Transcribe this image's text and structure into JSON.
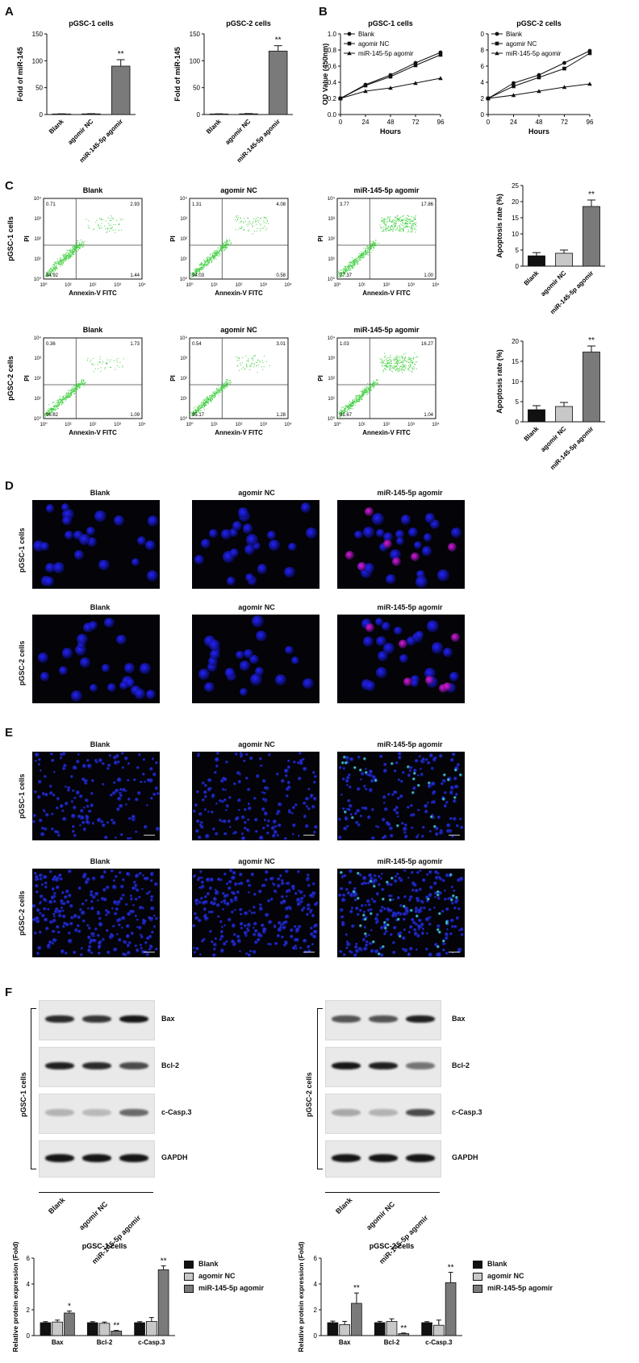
{
  "panels": {
    "A": "A",
    "B": "B",
    "C": "C",
    "D": "D",
    "E": "E",
    "F": "F"
  },
  "groups": [
    "Blank",
    "agomir NC",
    "miR-145-5p agomir"
  ],
  "cells": [
    "pGSC-1 cells",
    "pGSC-2 cells"
  ],
  "flow": {
    "xlabel": "Annexin-V FITC",
    "ylabel": "PI",
    "quadrants": [
      [
        [
          "0.71",
          "2.93",
          "94.92",
          "1.44"
        ],
        [
          "1.31",
          "4.08",
          "94.03",
          "0.58"
        ],
        [
          "3.77",
          "17.86",
          "77.37",
          "1.00"
        ]
      ],
      [
        [
          "0.36",
          "1.73",
          "96.82",
          "1.09"
        ],
        [
          "0.54",
          "3.01",
          "95.17",
          "1.28"
        ],
        [
          "1.03",
          "16.27",
          "81.67",
          "1.04"
        ]
      ]
    ]
  },
  "western": {
    "proteins": [
      "Bax",
      "Bcl-2",
      "c-Casp.3",
      "GAPDH"
    ]
  },
  "chart_data": [
    {
      "id": "A1",
      "type": "bar",
      "title": "pGSC-1 cells",
      "ylabel": "Fold of miR-145",
      "categories": [
        "Blank",
        "agomir NC",
        "miR-145-5p agomir"
      ],
      "values": [
        1,
        1.2,
        90
      ],
      "errors": [
        0.3,
        0.4,
        12
      ],
      "ylim": [
        0,
        150
      ],
      "yticks": [
        0,
        50,
        100,
        150
      ],
      "sig": [
        "",
        "",
        "**"
      ]
    },
    {
      "id": "A2",
      "type": "bar",
      "title": "pGSC-2 cells",
      "ylabel": "Fold of miR-145",
      "categories": [
        "Blank",
        "agomir NC",
        "miR-145-5p agomir"
      ],
      "values": [
        1,
        1.3,
        118
      ],
      "errors": [
        0.3,
        0.5,
        10
      ],
      "ylim": [
        0,
        150
      ],
      "yticks": [
        0,
        50,
        100,
        150
      ],
      "sig": [
        "",
        "",
        "**"
      ]
    },
    {
      "id": "B1",
      "type": "line",
      "title": "pGSC-1 cells",
      "xlabel": "Hours",
      "ylabel": "OD Value (450nm)",
      "x": [
        0,
        24,
        48,
        72,
        96
      ],
      "xticks": [
        0,
        24,
        48,
        72,
        96
      ],
      "ylim": [
        0,
        1.0
      ],
      "yticks": [
        0.0,
        0.2,
        0.4,
        0.6,
        0.8,
        1.0
      ],
      "series": [
        {
          "name": "Blank",
          "marker": "circle",
          "values": [
            0.2,
            0.37,
            0.49,
            0.64,
            0.77
          ]
        },
        {
          "name": "agomir NC",
          "marker": "square",
          "values": [
            0.2,
            0.36,
            0.47,
            0.61,
            0.74
          ]
        },
        {
          "name": "miR-145-5p agomir",
          "marker": "triangle",
          "values": [
            0.2,
            0.29,
            0.33,
            0.39,
            0.45
          ]
        }
      ]
    },
    {
      "id": "B2",
      "type": "line",
      "title": "pGSC-2 cells",
      "xlabel": "Hours",
      "ylabel": "OD Value (450nm)",
      "x": [
        0,
        24,
        48,
        72,
        96
      ],
      "xticks": [
        0,
        24,
        48,
        72,
        96
      ],
      "ylim": [
        0,
        1.0
      ],
      "yticks": [
        0.0,
        0.2,
        0.4,
        0.6,
        0.8,
        1.0
      ],
      "series": [
        {
          "name": "Blank",
          "marker": "circle",
          "values": [
            0.2,
            0.39,
            0.49,
            0.64,
            0.79
          ]
        },
        {
          "name": "agomir NC",
          "marker": "square",
          "values": [
            0.2,
            0.35,
            0.46,
            0.57,
            0.76
          ]
        },
        {
          "name": "miR-145-5p agomir",
          "marker": "triangle",
          "values": [
            0.2,
            0.24,
            0.29,
            0.34,
            0.38
          ]
        }
      ]
    },
    {
      "id": "C1",
      "type": "bar",
      "title": "",
      "ylabel": "Apoptosis rate (%)",
      "categories": [
        "Blank",
        "agomir NC",
        "miR-145-5p agomir"
      ],
      "values": [
        3.2,
        4.0,
        18.5
      ],
      "errors": [
        1.0,
        1.0,
        2.0
      ],
      "ylim": [
        0,
        25
      ],
      "yticks": [
        0,
        5,
        10,
        15,
        20,
        25
      ],
      "sig": [
        "",
        "",
        "**"
      ]
    },
    {
      "id": "C2",
      "type": "bar",
      "title": "",
      "ylabel": "Apoptosis rate (%)",
      "categories": [
        "Blank",
        "agomir NC",
        "miR-145-5p agomir"
      ],
      "values": [
        3.0,
        3.8,
        17.3
      ],
      "errors": [
        1.0,
        1.0,
        1.5
      ],
      "ylim": [
        0,
        20
      ],
      "yticks": [
        0,
        5,
        10,
        15,
        20
      ],
      "sig": [
        "",
        "",
        "**"
      ]
    },
    {
      "id": "F1",
      "type": "bar",
      "title": "pGSC-1 cells",
      "ylabel": "Relative protein expression (Fold)",
      "categories": [
        "Bax",
        "Bcl-2",
        "c-Casp.3"
      ],
      "ylim": [
        0,
        6
      ],
      "yticks": [
        0,
        2,
        4,
        6
      ],
      "series": [
        {
          "name": "Blank",
          "values": [
            1,
            1,
            1
          ],
          "errors": [
            0.08,
            0.08,
            0.08
          ]
        },
        {
          "name": "agomir NC",
          "values": [
            1.05,
            0.95,
            1.1
          ],
          "errors": [
            0.15,
            0.1,
            0.3
          ]
        },
        {
          "name": "miR-145-5p agomir",
          "values": [
            1.75,
            0.35,
            5.1
          ],
          "errors": [
            0.15,
            0.05,
            0.3
          ]
        }
      ],
      "sig": [
        [
          "",
          "",
          "*"
        ],
        [
          "",
          "",
          "**"
        ],
        [
          "",
          "",
          "**"
        ]
      ]
    },
    {
      "id": "F2",
      "type": "bar",
      "title": "pGSC-2 cells",
      "ylabel": "Relative protein expression (Fold)",
      "categories": [
        "Bax",
        "Bcl-2",
        "c-Casp.3"
      ],
      "ylim": [
        0,
        6
      ],
      "yticks": [
        0,
        2,
        4,
        6
      ],
      "series": [
        {
          "name": "Blank",
          "values": [
            1,
            1,
            1
          ],
          "errors": [
            0.12,
            0.1,
            0.08
          ]
        },
        {
          "name": "agomir NC",
          "values": [
            0.85,
            1.1,
            0.8
          ],
          "errors": [
            0.25,
            0.2,
            0.4
          ]
        },
        {
          "name": "miR-145-5p agomir",
          "values": [
            2.5,
            0.15,
            4.1
          ],
          "errors": [
            0.8,
            0.05,
            0.8
          ]
        }
      ],
      "sig": [
        [
          "",
          "",
          "**"
        ],
        [
          "",
          "",
          "**"
        ],
        [
          "",
          "",
          "**"
        ]
      ]
    }
  ],
  "colors": {
    "black": "#111111",
    "light_gray": "#c8c8c8",
    "mid_gray": "#7a7a7a",
    "dot_green": "#3fcf3f",
    "dapi_blue": "#2323ff",
    "pi_magenta": "#e01ae0",
    "tunel_cyan": "#4ff7ff"
  }
}
